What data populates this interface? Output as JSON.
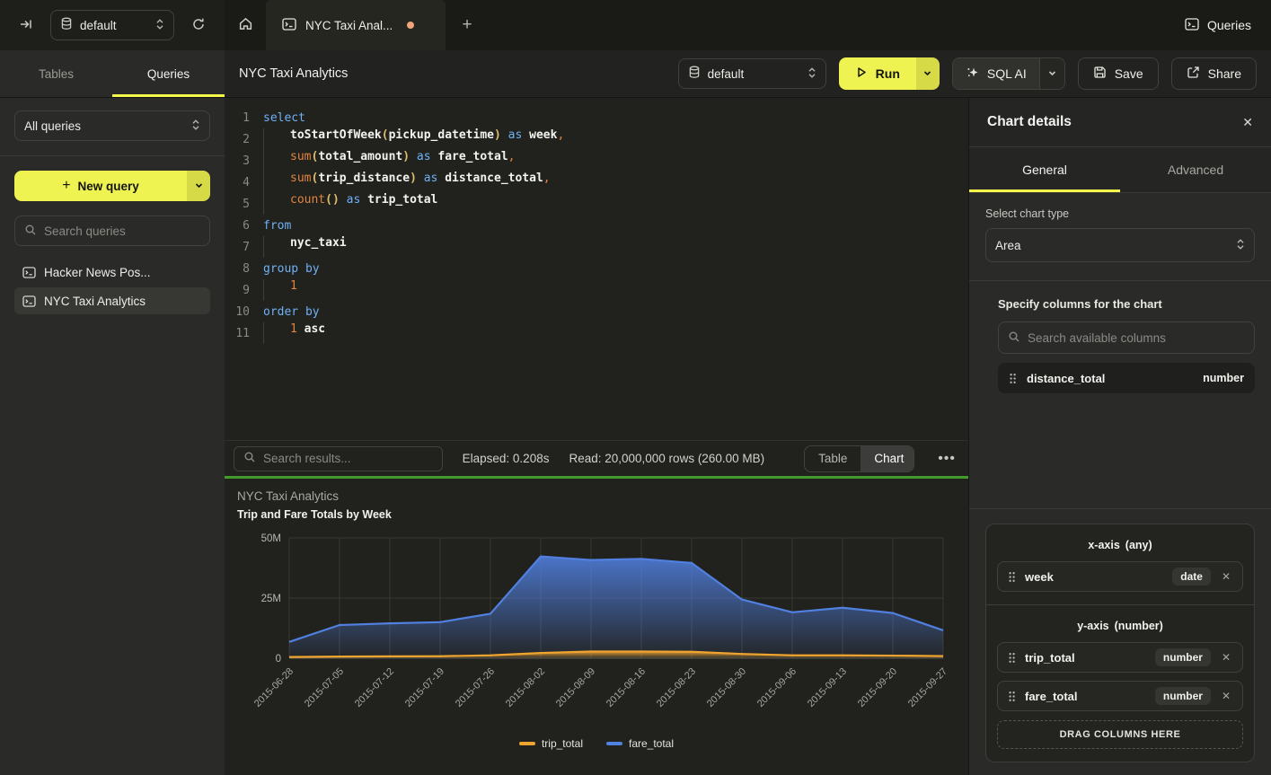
{
  "topbar": {
    "database_selector": "default",
    "tab_title": "NYC Taxi Anal...",
    "queries_label": "Queries"
  },
  "sidebar": {
    "tabs": [
      {
        "label": "Tables",
        "active": false
      },
      {
        "label": "Queries",
        "active": true
      }
    ],
    "filter_select": "All queries",
    "new_query_label": "New query",
    "search_placeholder": "Search queries",
    "queries": [
      {
        "label": "Hacker News Pos...",
        "active": false
      },
      {
        "label": "NYC Taxi Analytics",
        "active": true
      }
    ]
  },
  "query_header": {
    "title": "NYC Taxi Analytics",
    "database_selector": "default",
    "run_label": "Run",
    "sql_ai_label": "SQL AI",
    "save_label": "Save",
    "share_label": "Share"
  },
  "editor": {
    "lines": [
      {
        "n": 1,
        "tokens": [
          [
            "kw",
            "select"
          ]
        ]
      },
      {
        "n": 2,
        "tokens": [
          [
            "ind",
            ""
          ],
          [
            "id",
            "toStartOfWeek"
          ],
          [
            "par",
            "("
          ],
          [
            "id",
            "pickup_datetime"
          ],
          [
            "par",
            ")"
          ],
          [
            "kw",
            " as "
          ],
          [
            "id",
            "week"
          ],
          [
            "pun",
            ","
          ]
        ]
      },
      {
        "n": 3,
        "tokens": [
          [
            "ind",
            ""
          ],
          [
            "fn",
            "sum"
          ],
          [
            "par",
            "("
          ],
          [
            "id",
            "total_amount"
          ],
          [
            "par",
            ")"
          ],
          [
            "kw",
            " as "
          ],
          [
            "id",
            "fare_total"
          ],
          [
            "pun",
            ","
          ]
        ]
      },
      {
        "n": 4,
        "tokens": [
          [
            "ind",
            ""
          ],
          [
            "fn",
            "sum"
          ],
          [
            "par",
            "("
          ],
          [
            "id",
            "trip_distance"
          ],
          [
            "par",
            ")"
          ],
          [
            "kw",
            " as "
          ],
          [
            "id",
            "distance_total"
          ],
          [
            "pun",
            ","
          ]
        ]
      },
      {
        "n": 5,
        "tokens": [
          [
            "ind",
            ""
          ],
          [
            "fn",
            "count"
          ],
          [
            "par",
            "()"
          ],
          [
            "kw",
            " as "
          ],
          [
            "id",
            "trip_total"
          ]
        ]
      },
      {
        "n": 6,
        "tokens": [
          [
            "kw",
            "from"
          ]
        ]
      },
      {
        "n": 7,
        "tokens": [
          [
            "ind",
            ""
          ],
          [
            "id",
            "nyc_taxi"
          ]
        ]
      },
      {
        "n": 8,
        "tokens": [
          [
            "kw",
            "group by"
          ]
        ]
      },
      {
        "n": 9,
        "tokens": [
          [
            "ind",
            ""
          ],
          [
            "num",
            "1"
          ]
        ]
      },
      {
        "n": 10,
        "tokens": [
          [
            "kw",
            "order by"
          ]
        ]
      },
      {
        "n": 11,
        "tokens": [
          [
            "ind",
            ""
          ],
          [
            "num",
            "1"
          ],
          [
            "id",
            " asc"
          ]
        ]
      }
    ]
  },
  "results_bar": {
    "search_placeholder": "Search results...",
    "elapsed": "Elapsed: 0.208s",
    "read": "Read: 20,000,000 rows (260.00 MB)",
    "view_toggle": [
      {
        "label": "Table",
        "active": false
      },
      {
        "label": "Chart",
        "active": true
      }
    ]
  },
  "chart_data": {
    "type": "area",
    "title": "NYC Taxi Analytics",
    "subtitle": "Trip and Fare Totals by Week",
    "x": [
      "2015-06-28",
      "2015-07-05",
      "2015-07-12",
      "2015-07-19",
      "2015-07-26",
      "2015-08-02",
      "2015-08-09",
      "2015-08-16",
      "2015-08-23",
      "2015-08-30",
      "2015-09-06",
      "2015-09-13",
      "2015-09-20",
      "2015-09-27"
    ],
    "series": [
      {
        "name": "trip_total",
        "color": "#EFA42F",
        "values": [
          500000,
          700000,
          800000,
          850000,
          1200000,
          2200000,
          2800000,
          2800000,
          2700000,
          1800000,
          1200000,
          1200000,
          1100000,
          900000
        ]
      },
      {
        "name": "fare_total",
        "color": "#5080E0",
        "values": [
          6800000,
          13800000,
          14500000,
          15000000,
          18500000,
          42300000,
          40800000,
          41300000,
          39600000,
          24400000,
          19100000,
          21000000,
          18800000,
          11600000
        ]
      }
    ],
    "ylim": [
      0,
      50000000
    ],
    "yticks": [
      {
        "value": 0,
        "label": "0"
      },
      {
        "value": 25000000,
        "label": "25M"
      },
      {
        "value": 50000000,
        "label": "50M"
      }
    ],
    "legend_position": "bottom",
    "grid": "vertical"
  },
  "chart_details": {
    "title": "Chart details",
    "tabs": [
      {
        "label": "General",
        "active": true
      },
      {
        "label": "Advanced",
        "active": false
      }
    ],
    "chart_type_label": "Select chart type",
    "chart_type": "Area",
    "columns_label": "Specify columns for the chart",
    "search_placeholder": "Search available columns",
    "available_columns": [
      {
        "name": "distance_total",
        "type": "number"
      }
    ],
    "axes": [
      {
        "name": "x-axis",
        "constraint": "(any)",
        "drop_target": false,
        "columns": [
          {
            "name": "week",
            "type": "date"
          }
        ]
      },
      {
        "name": "y-axis",
        "constraint": "(number)",
        "drop_target": true,
        "columns": [
          {
            "name": "trip_total",
            "type": "number"
          },
          {
            "name": "fare_total",
            "type": "number"
          }
        ]
      }
    ],
    "drop_zone_label": "DRAG COLUMNS HERE"
  }
}
